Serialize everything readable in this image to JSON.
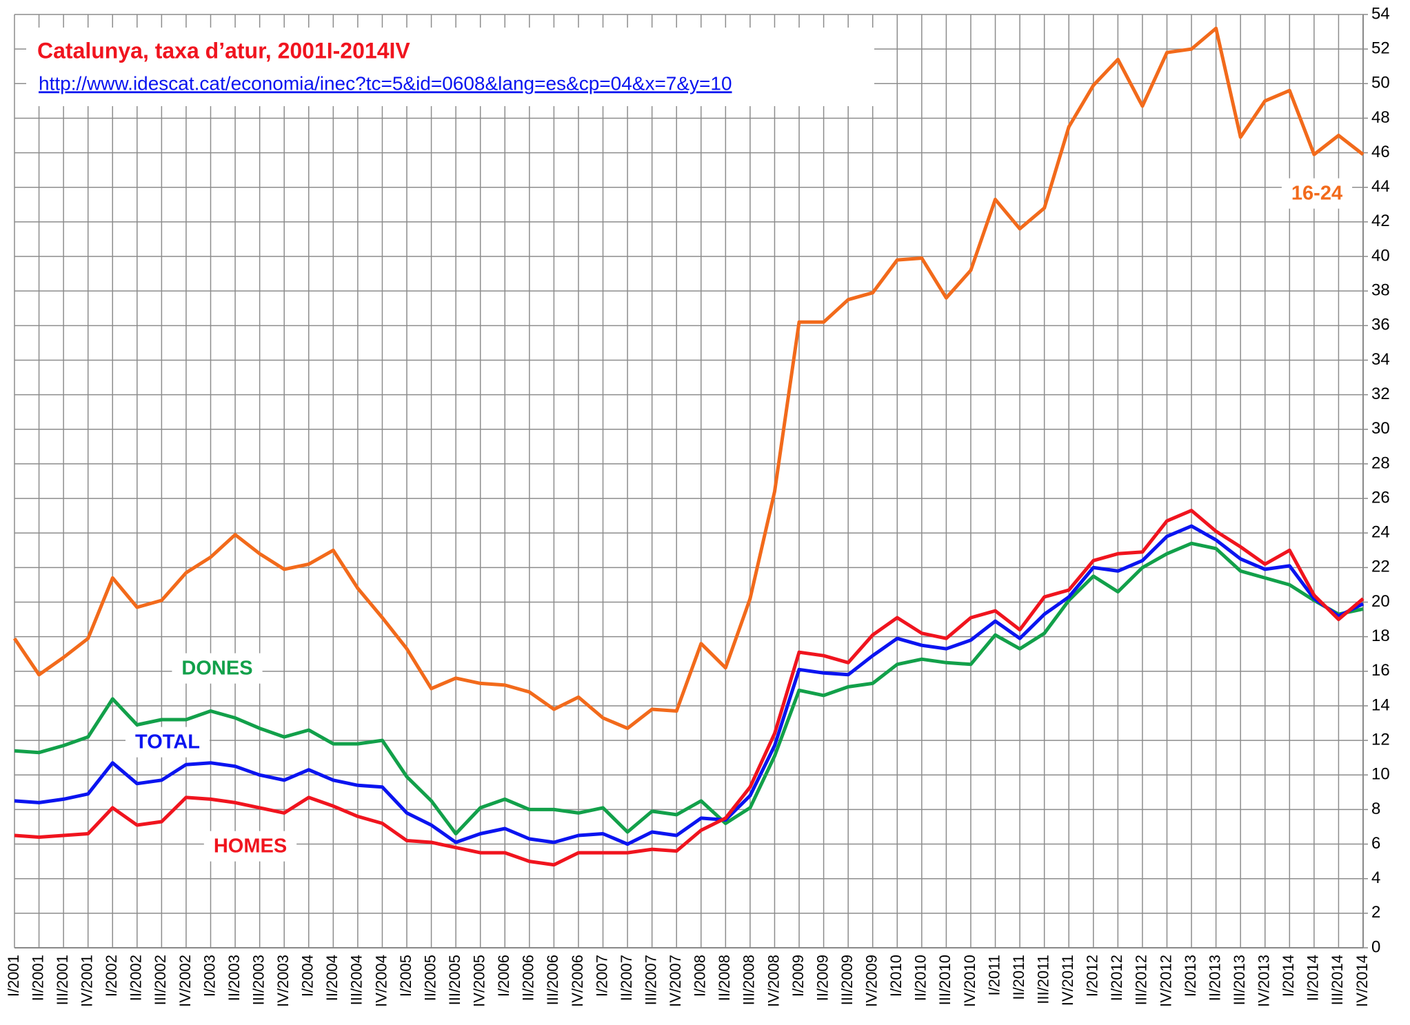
{
  "chart_data": {
    "type": "line",
    "title": "Catalunya, taxa d’atur, 2001I-2014IV",
    "subtitle": "http://www.idescat.cat/economia/inec?tc=5&id=0608&lang=es&cp=04&x=7&y=10",
    "categories": [
      "I/2001",
      "II/2001",
      "III/2001",
      "IV/2001",
      "I/2002",
      "II/2002",
      "III/2002",
      "IV/2002",
      "I/2003",
      "II/2003",
      "III/2003",
      "IV/2003",
      "I/2004",
      "II/2004",
      "III/2004",
      "IV/2004",
      "I/2005",
      "II/2005",
      "III/2005",
      "IV/2005",
      "I/2006",
      "II/2006",
      "III/2006",
      "IV/2006",
      "I/2007",
      "II/2007",
      "III/2007",
      "IV/2007",
      "I/2008",
      "II/2008",
      "III/2008",
      "IV/2008",
      "I/2009",
      "II/2009",
      "III/2009",
      "IV/2009",
      "I/2010",
      "II/2010",
      "III/2010",
      "IV/2010",
      "I/2011",
      "II/2011",
      "III/2011",
      "IV/2011",
      "I/2012",
      "II/2012",
      "III/2012",
      "IV/2012",
      "I/2013",
      "II/2013",
      "III/2013",
      "IV/2013",
      "I/2014",
      "II/2014",
      "III/2014",
      "IV/2014"
    ],
    "series": [
      {
        "name": "16-24",
        "color": "#f26a1b",
        "values": [
          17.9,
          15.8,
          16.8,
          17.9,
          21.4,
          19.7,
          20.1,
          21.7,
          22.6,
          23.9,
          22.8,
          21.9,
          22.2,
          23.0,
          20.8,
          19.1,
          17.3,
          15.0,
          15.6,
          15.3,
          15.2,
          14.8,
          13.8,
          14.5,
          13.3,
          12.7,
          13.8,
          13.7,
          17.6,
          16.2,
          20.2,
          26.4,
          36.2,
          36.2,
          37.5,
          37.9,
          39.8,
          39.9,
          37.6,
          39.2,
          43.3,
          41.6,
          42.8,
          47.5,
          49.9,
          51.4,
          48.7,
          51.8,
          52.0,
          53.2,
          46.9,
          49.0,
          49.6,
          45.9,
          47.0,
          45.9
        ]
      },
      {
        "name": "DONES",
        "color": "#12a04a",
        "values": [
          11.4,
          11.3,
          11.7,
          12.2,
          14.4,
          12.9,
          13.2,
          13.2,
          13.7,
          13.3,
          12.7,
          12.2,
          12.6,
          11.8,
          11.8,
          12.0,
          9.9,
          8.5,
          6.6,
          8.1,
          8.6,
          8.0,
          8.0,
          7.8,
          8.1,
          6.7,
          7.9,
          7.7,
          8.5,
          7.2,
          8.1,
          11.1,
          14.9,
          14.6,
          15.1,
          15.3,
          16.4,
          16.7,
          16.5,
          16.4,
          18.1,
          17.3,
          18.2,
          20.1,
          21.5,
          20.6,
          22.0,
          22.8,
          23.4,
          23.1,
          21.8,
          21.4,
          21.0,
          20.1,
          19.3,
          19.6
        ]
      },
      {
        "name": "TOTAL",
        "color": "#0a14f0",
        "values": [
          8.5,
          8.4,
          8.6,
          8.9,
          10.7,
          9.5,
          9.7,
          10.6,
          10.7,
          10.5,
          10.0,
          9.7,
          10.3,
          9.7,
          9.4,
          9.3,
          7.8,
          7.1,
          6.1,
          6.6,
          6.9,
          6.3,
          6.1,
          6.5,
          6.6,
          6.0,
          6.7,
          6.5,
          7.5,
          7.4,
          8.8,
          11.7,
          16.1,
          15.9,
          15.8,
          16.9,
          17.9,
          17.5,
          17.3,
          17.8,
          18.9,
          17.9,
          19.3,
          20.3,
          22.0,
          21.8,
          22.4,
          23.8,
          24.4,
          23.6,
          22.5,
          21.9,
          22.1,
          20.2,
          19.2,
          19.9
        ]
      },
      {
        "name": "HOMES",
        "color": "#f0141e",
        "values": [
          6.5,
          6.4,
          6.5,
          6.6,
          8.1,
          7.1,
          7.3,
          8.7,
          8.6,
          8.4,
          8.1,
          7.8,
          8.7,
          8.2,
          7.6,
          7.2,
          6.2,
          6.1,
          5.8,
          5.5,
          5.5,
          5.0,
          4.8,
          5.5,
          5.5,
          5.5,
          5.7,
          5.6,
          6.8,
          7.5,
          9.3,
          12.4,
          17.1,
          16.9,
          16.5,
          18.1,
          19.1,
          18.2,
          17.9,
          19.1,
          19.5,
          18.4,
          20.3,
          20.7,
          22.4,
          22.8,
          22.9,
          24.7,
          25.3,
          24.1,
          23.2,
          22.2,
          23.0,
          20.4,
          19.0,
          20.2
        ]
      }
    ],
    "ylim": [
      0,
      54
    ],
    "yticks": [
      0,
      2,
      4,
      6,
      8,
      10,
      12,
      14,
      16,
      18,
      20,
      22,
      24,
      26,
      28,
      30,
      32,
      34,
      36,
      38,
      40,
      42,
      44,
      46,
      48,
      50,
      52,
      54
    ],
    "grid": true
  }
}
